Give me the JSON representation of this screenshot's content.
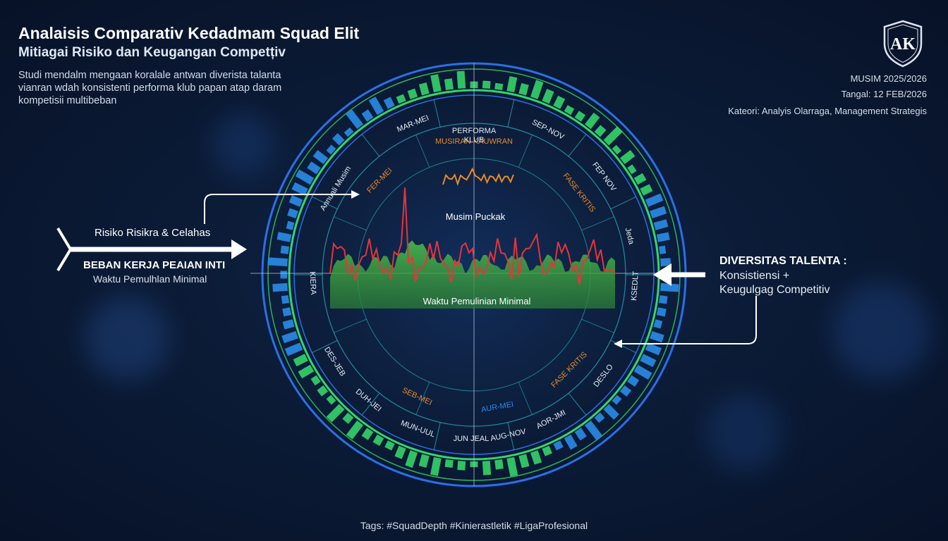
{
  "header": {
    "title": "Analaisis Comparativ Kedadmam Squad Elit",
    "subtitle": "Mitiagai Risiko dan Keugangan Competțiv",
    "description": "Studi mendalm mengaan koralale antwan diverista talanta vianran wdah konsistenti performa klub papan atap daram kompetisii multibeban"
  },
  "meta": {
    "season": "MUSIM 2025/2026",
    "date": "Tangal: 12 FEB/2026",
    "category": "Kateori: Analyis Olarraga, Management Strategis"
  },
  "logo": {
    "letters": "AK",
    "icon": "shield-logo-icon"
  },
  "left_panel": {
    "label1": "Risiko Risikra & Celahas",
    "label2": "BEBAN KERJA PEAIAN INTI",
    "label3": "Waktu Pemulhlan Minimal"
  },
  "right_panel": {
    "label1": "DIVERSITAS TALENTA :",
    "label2": "Konsistiensi +",
    "label3": "Keugulgag Competitiv"
  },
  "circle": {
    "center_top": [
      "PERFORMA",
      "KLUB"
    ],
    "outer_segments": [
      "MAR-MEI",
      "SEP-NOV",
      "FEP NOV",
      "Jeda",
      "KSEDLT",
      "DESLO",
      "AOR-JMI",
      "AUG-NOV",
      "JUN JEAL",
      "MUN-UUL",
      "DUH-JEI",
      "DES-JEB",
      "KIERA",
      "Annuali Musim"
    ],
    "inner_segments": [
      "MUSIRAN KAUWRAN",
      "FASE KRITIS",
      "FER-MEI",
      "SEB-MEI",
      "AUR-MEI",
      "FASE KRITIS"
    ],
    "peak_label": "Musim Puckak",
    "base_label": "Waktu Pemulinian Minimal"
  },
  "tags": "Tags: #SquadDepth #Kinierastletik #LigaProfesional",
  "colors": {
    "accent_blue": "#2a6fe8",
    "accent_green": "#35d46a",
    "line_red": "#e8343a",
    "line_orange": "#e88a2a",
    "area_green": "#3fae47"
  }
}
